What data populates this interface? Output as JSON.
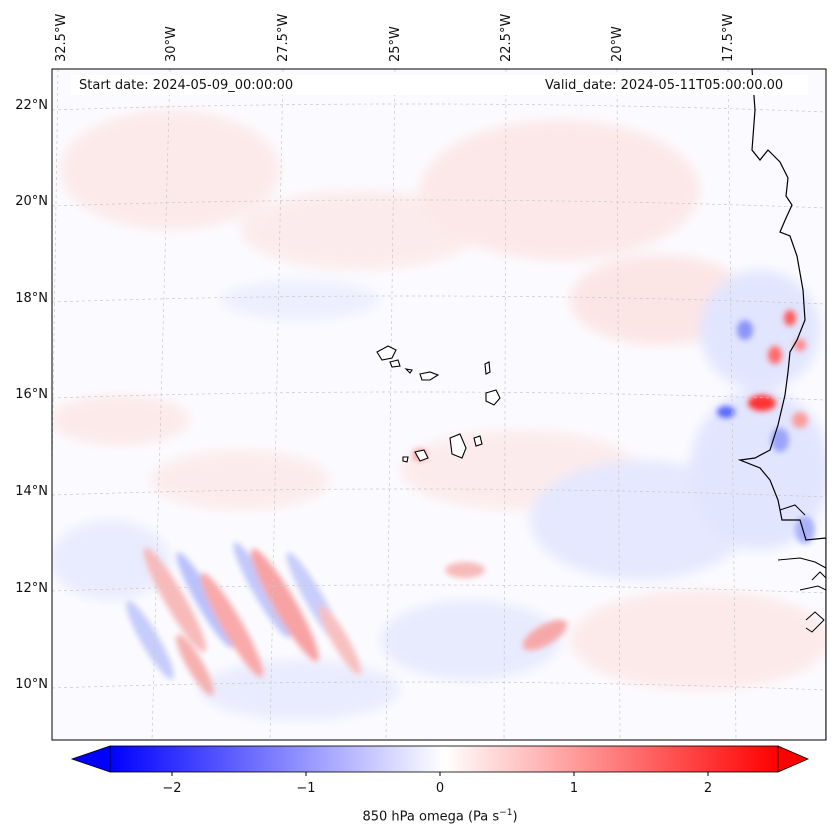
{
  "map": {
    "start_date": "Start date: 2024-05-09_00:00:00",
    "valid_date": "Valid_date: 2024-05-11T05:00:00.00",
    "lon_labels": [
      "32.5°W",
      "30°W",
      "27.5°W",
      "25°W",
      "22.5°W",
      "20°W",
      "17.5°W"
    ],
    "lat_labels": [
      "22°N",
      "20°N",
      "18°N",
      "16°N",
      "14°N",
      "12°N",
      "10°N"
    ],
    "colors": {
      "negative": "#0000ff",
      "neutral": "#ffffff",
      "positive": "#ff0000",
      "coast": "#000000",
      "grid": "#bbbbbb"
    }
  },
  "colorbar": {
    "ticks": [
      "−2",
      "−1",
      "0",
      "1",
      "2"
    ],
    "label": "850 hPa omega (Pa s",
    "label_sup": "−1",
    "label_end": ")"
  }
}
